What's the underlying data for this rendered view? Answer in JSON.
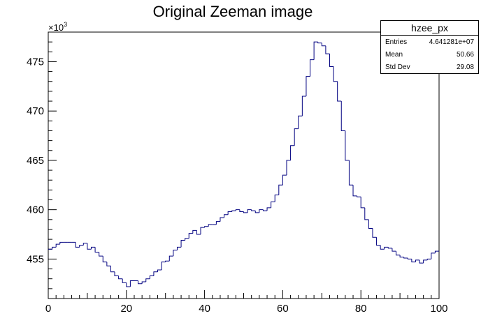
{
  "chart_data": {
    "type": "histogram-step",
    "title": "Original Zeeman image",
    "xlabel": "",
    "ylabel": "",
    "y_multiplier": "×10",
    "y_multiplier_exp": "3",
    "xlim": [
      0,
      100
    ],
    "ylim": [
      451,
      478
    ],
    "x_ticks": [
      0,
      20,
      40,
      60,
      80,
      100
    ],
    "y_ticks": [
      455,
      460,
      465,
      470,
      475
    ],
    "bins": 100,
    "color": "#000080",
    "values": [
      456.0,
      456.2,
      456.5,
      456.7,
      456.7,
      456.7,
      456.7,
      456.2,
      456.4,
      456.6,
      456.0,
      456.2,
      455.7,
      455.3,
      454.7,
      454.3,
      453.7,
      453.3,
      453.0,
      452.6,
      452.2,
      452.8,
      452.8,
      452.5,
      452.7,
      453.0,
      453.3,
      453.7,
      453.9,
      454.7,
      454.8,
      455.3,
      455.9,
      456.2,
      456.9,
      457.1,
      457.6,
      457.9,
      457.5,
      458.2,
      458.3,
      458.5,
      458.5,
      458.8,
      459.2,
      459.5,
      459.8,
      459.9,
      460.0,
      459.8,
      459.7,
      460.0,
      459.9,
      459.7,
      460.0,
      459.9,
      460.2,
      460.8,
      461.5,
      462.5,
      463.5,
      465.0,
      466.5,
      468.2,
      469.5,
      471.5,
      473.5,
      475.2,
      477.0,
      476.9,
      476.6,
      475.8,
      474.5,
      473.0,
      471.0,
      468.0,
      465.0,
      462.5,
      461.4,
      461.3,
      460.2,
      459.0,
      458.1,
      457.2,
      456.4,
      456.0,
      456.2,
      456.1,
      455.8,
      455.4,
      455.2,
      455.1,
      455.0,
      454.7,
      454.9,
      454.6,
      454.9,
      455.0,
      455.6,
      455.8
    ]
  },
  "stats": {
    "name": "hzee_px",
    "rows": [
      {
        "label": "Entries",
        "value": "4.641281e+07"
      },
      {
        "label": "Mean",
        "value": "50.66"
      },
      {
        "label": "Std Dev",
        "value": "29.08"
      }
    ]
  }
}
